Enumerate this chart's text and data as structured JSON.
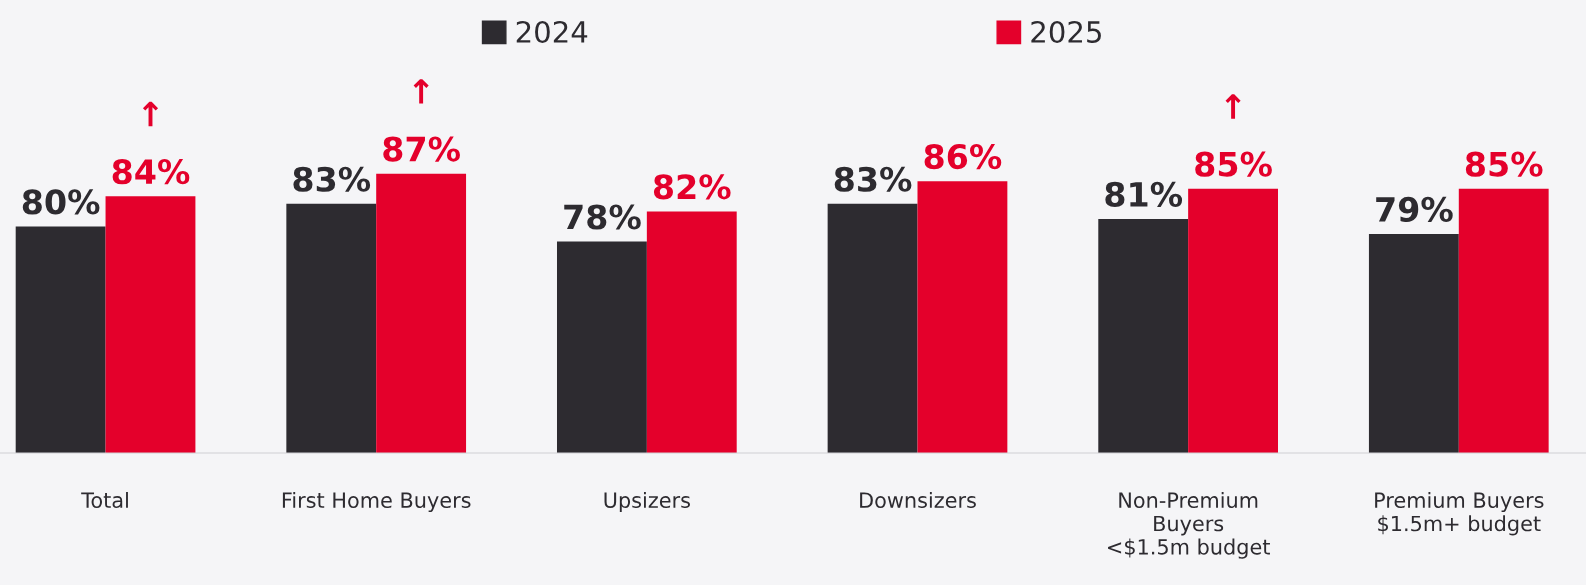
{
  "chart_data": {
    "type": "bar",
    "categories": [
      "Total",
      "First Home Buyers",
      "Upsizers",
      "Downsizers",
      "Non-Premium\nBuyers\n<$1.5m budget",
      "Premium Buyers\n$1.5m+ budget"
    ],
    "series": [
      {
        "name": "2024",
        "color": "#2d2b30",
        "values": [
          80,
          83,
          78,
          83,
          81,
          79
        ],
        "value_labels": [
          "80%",
          "83%",
          "78%",
          "83%",
          "81%",
          "79%"
        ]
      },
      {
        "name": "2025",
        "color": "#e4002b",
        "values": [
          84,
          87,
          82,
          86,
          85,
          85
        ],
        "value_labels": [
          "↑\n84%",
          "↑\n87%",
          "82%",
          "86%",
          "↑\n85%",
          "85%"
        ]
      }
    ],
    "ylim": [
      50,
      110
    ],
    "legend": "top",
    "grid": false
  }
}
